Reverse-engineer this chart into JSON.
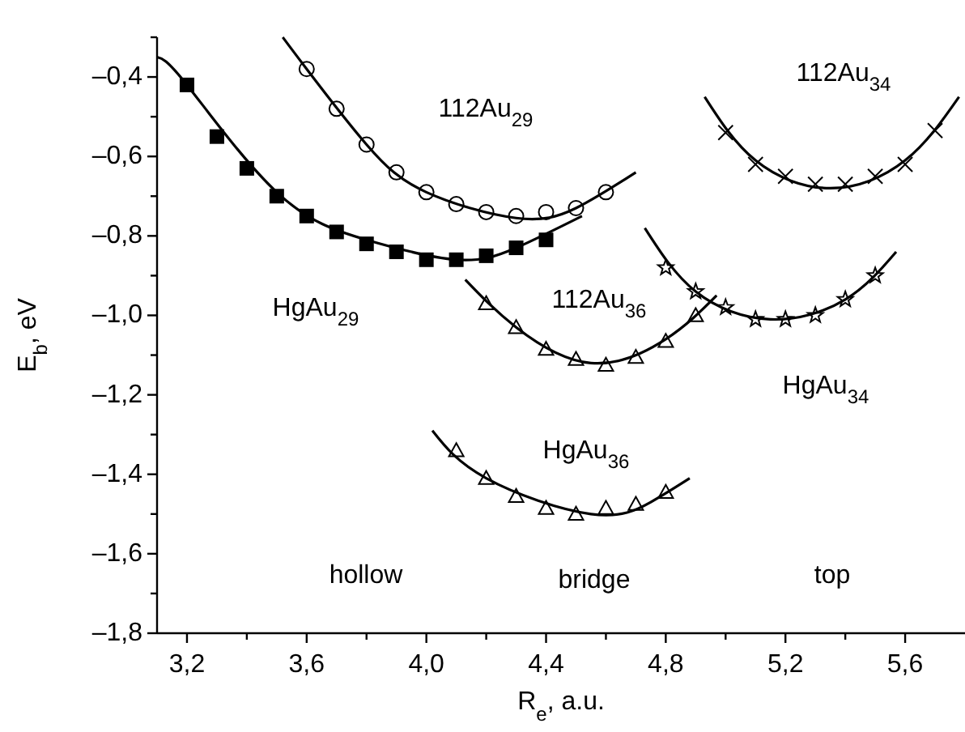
{
  "chart_data": {
    "type": "scatter",
    "xlabel": "R$_{e}$, a.u.",
    "ylabel": "E$_{b}$, eV",
    "xlim": [
      3.1,
      5.8
    ],
    "ylim": [
      -1.8,
      -0.3
    ],
    "xticks": [
      {
        "value": 3.2,
        "label": "3,2"
      },
      {
        "value": 3.4,
        "label": null
      },
      {
        "value": 3.6,
        "label": "3,6"
      },
      {
        "value": 3.8,
        "label": null
      },
      {
        "value": 4.0,
        "label": "4,0"
      },
      {
        "value": 4.2,
        "label": null
      },
      {
        "value": 4.4,
        "label": "4,4"
      },
      {
        "value": 4.6,
        "label": null
      },
      {
        "value": 4.8,
        "label": "4,8"
      },
      {
        "value": 5.0,
        "label": null
      },
      {
        "value": 5.2,
        "label": "5,2"
      },
      {
        "value": 5.4,
        "label": null
      },
      {
        "value": 5.6,
        "label": "5,6"
      }
    ],
    "yticks": [
      {
        "value": -1.8,
        "label": "–1,8"
      },
      {
        "value": -1.7,
        "label": null
      },
      {
        "value": -1.6,
        "label": "–1,6"
      },
      {
        "value": -1.5,
        "label": null
      },
      {
        "value": -1.4,
        "label": "–1,4"
      },
      {
        "value": -1.3,
        "label": null
      },
      {
        "value": -1.2,
        "label": "–1,2"
      },
      {
        "value": -1.1,
        "label": null
      },
      {
        "value": -1.0,
        "label": "–1,0"
      },
      {
        "value": -0.9,
        "label": null
      },
      {
        "value": -0.8,
        "label": "–0,8"
      },
      {
        "value": -0.7,
        "label": null
      },
      {
        "value": -0.6,
        "label": "–0,6"
      },
      {
        "value": -0.5,
        "label": null
      },
      {
        "value": -0.4,
        "label": "–0,4"
      },
      {
        "value": -0.3,
        "label": null
      }
    ],
    "grid": false,
    "series": [
      {
        "name": "HgAu$_{29}$",
        "marker": "square",
        "color": "#000000",
        "x": [
          3.2,
          3.3,
          3.4,
          3.5,
          3.6,
          3.7,
          3.8,
          3.9,
          4.0,
          4.1,
          4.2,
          4.3,
          4.4
        ],
        "values": [
          -0.42,
          -0.55,
          -0.63,
          -0.7,
          -0.75,
          -0.79,
          -0.82,
          -0.84,
          -0.86,
          -0.86,
          -0.85,
          -0.83,
          -0.81
        ]
      },
      {
        "type": "line",
        "marker": "none",
        "color": "#000000",
        "x": [
          3.1,
          3.2,
          3.5,
          3.8,
          4.1,
          4.3,
          4.52
        ],
        "values": [
          -0.35,
          -0.42,
          -0.69,
          -0.81,
          -0.86,
          -0.83,
          -0.75
        ]
      },
      {
        "name": "112Au$_{29}$",
        "marker": "circle",
        "color": "#000000",
        "x": [
          3.6,
          3.7,
          3.8,
          3.9,
          4.0,
          4.1,
          4.2,
          4.3,
          4.4,
          4.5,
          4.6
        ],
        "values": [
          -0.38,
          -0.48,
          -0.57,
          -0.64,
          -0.69,
          -0.72,
          -0.74,
          -0.75,
          -0.74,
          -0.73,
          -0.69
        ]
      },
      {
        "type": "line",
        "marker": "none",
        "color": "#000000",
        "x": [
          3.52,
          3.6,
          3.8,
          4.0,
          4.3,
          4.5,
          4.7
        ],
        "values": [
          -0.3,
          -0.38,
          -0.57,
          -0.69,
          -0.755,
          -0.73,
          -0.64
        ]
      },
      {
        "name": "112Au$_{34}$",
        "marker": "cross",
        "color": "#000000",
        "x": [
          5.0,
          5.1,
          5.2,
          5.3,
          5.4,
          5.5,
          5.6,
          5.7
        ],
        "values": [
          -0.54,
          -0.62,
          -0.65,
          -0.67,
          -0.67,
          -0.65,
          -0.62,
          -0.535
        ]
      },
      {
        "type": "line",
        "marker": "none",
        "color": "#000000",
        "x": [
          4.93,
          5.1,
          5.35,
          5.6,
          5.78
        ],
        "values": [
          -0.45,
          -0.61,
          -0.68,
          -0.61,
          -0.45
        ]
      },
      {
        "name": "HgAu$_{34}$",
        "marker": "star",
        "color": "#000000",
        "x": [
          4.8,
          4.9,
          5.0,
          5.1,
          5.2,
          5.3,
          5.4,
          5.5
        ],
        "values": [
          -0.88,
          -0.94,
          -0.98,
          -1.01,
          -1.01,
          -1.0,
          -0.96,
          -0.9
        ]
      },
      {
        "type": "line",
        "marker": "none",
        "color": "#000000",
        "x": [
          4.73,
          4.9,
          5.15,
          5.4,
          5.57
        ],
        "values": [
          -0.78,
          -0.94,
          -1.01,
          -0.96,
          -0.84
        ]
      },
      {
        "name": "112Au$_{36}$",
        "marker": "triangle",
        "color": "#000000",
        "x": [
          4.2,
          4.3,
          4.4,
          4.5,
          4.6,
          4.7,
          4.8,
          4.9
        ],
        "values": [
          -0.97,
          -1.03,
          -1.085,
          -1.11,
          -1.125,
          -1.105,
          -1.065,
          -1.0
        ]
      },
      {
        "type": "line",
        "marker": "none",
        "color": "#000000",
        "x": [
          4.13,
          4.3,
          4.55,
          4.8,
          4.97
        ],
        "values": [
          -0.91,
          -1.03,
          -1.12,
          -1.06,
          -0.95
        ]
      },
      {
        "name": "HgAu$_{36}$",
        "marker": "triangle",
        "color": "#000000",
        "x": [
          4.1,
          4.2,
          4.3,
          4.4,
          4.5,
          4.6,
          4.7,
          4.8
        ],
        "values": [
          -1.34,
          -1.41,
          -1.455,
          -1.485,
          -1.5,
          -1.485,
          -1.475,
          -1.445
        ]
      },
      {
        "type": "line",
        "marker": "none",
        "color": "#000000",
        "x": [
          4.02,
          4.2,
          4.55,
          4.75,
          4.88
        ],
        "values": [
          -1.29,
          -1.41,
          -1.5,
          -1.47,
          -1.41
        ]
      }
    ],
    "annotations": [
      "hollow",
      "bridge",
      "top"
    ]
  }
}
